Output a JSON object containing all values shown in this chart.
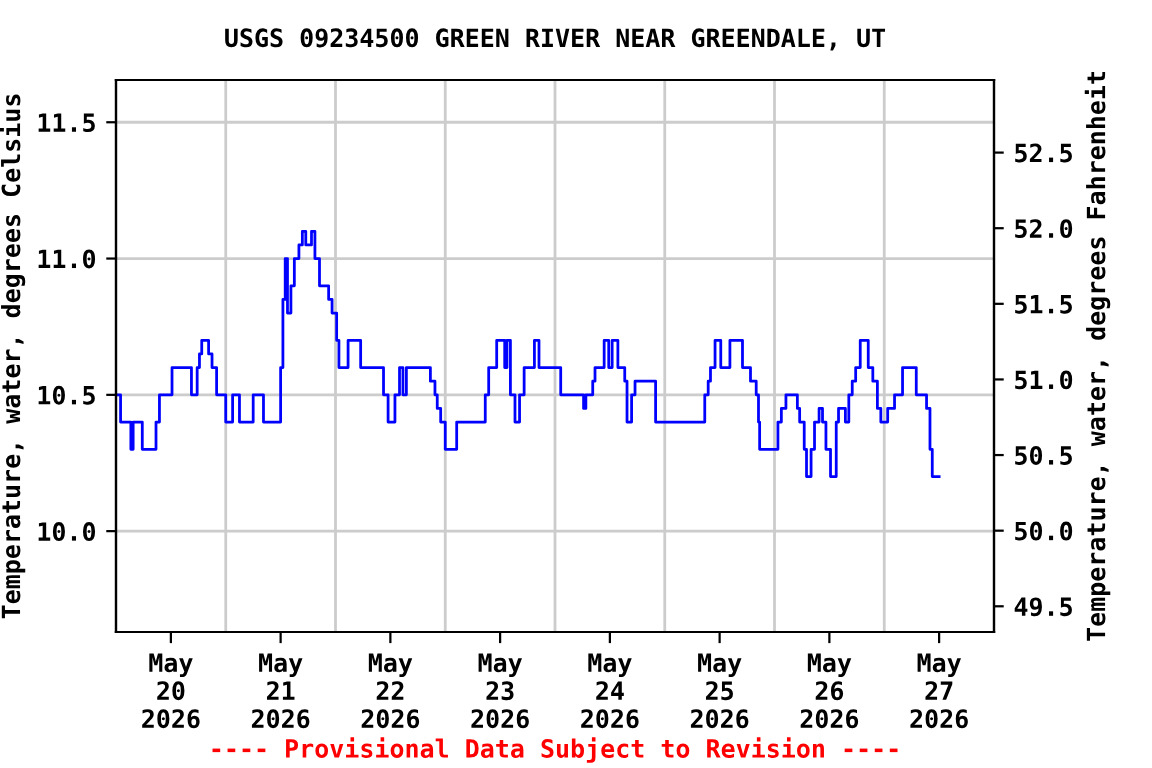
{
  "chart_data": {
    "type": "step",
    "title": "USGS 09234500 GREEN RIVER NEAR GREENDALE, UT",
    "ylabel": "Temperature, water, degrees Celsius",
    "y2label": "Temperature, water, degrees Fahrenheit",
    "annotations": [
      "---- Provisional Data Subject to Revision ----"
    ],
    "x": [
      "2026-05-20T00:00",
      "2026-05-20T01:00",
      "2026-05-20T03:15",
      "2026-05-20T03:45",
      "2026-05-20T05:45",
      "2026-05-20T08:45",
      "2026-05-20T09:30",
      "2026-05-20T12:15",
      "2026-05-20T16:30",
      "2026-05-20T17:45",
      "2026-05-20T18:15",
      "2026-05-20T18:45",
      "2026-05-20T20:15",
      "2026-05-20T21:00",
      "2026-05-20T22:00",
      "2026-05-21T00:00",
      "2026-05-21T01:30",
      "2026-05-21T03:00",
      "2026-05-21T06:00",
      "2026-05-21T08:15",
      "2026-05-21T12:00",
      "2026-05-21T12:30",
      "2026-05-21T13:00",
      "2026-05-21T13:30",
      "2026-05-21T14:15",
      "2026-05-21T15:00",
      "2026-05-21T16:00",
      "2026-05-21T16:45",
      "2026-05-21T17:30",
      "2026-05-21T18:45",
      "2026-05-21T19:30",
      "2026-05-21T20:30",
      "2026-05-21T22:30",
      "2026-05-21T23:15",
      "2026-05-22T00:15",
      "2026-05-22T00:45",
      "2026-05-22T02:45",
      "2026-05-22T05:30",
      "2026-05-22T10:30",
      "2026-05-22T11:30",
      "2026-05-22T13:00",
      "2026-05-22T14:00",
      "2026-05-22T14:45",
      "2026-05-22T15:30",
      "2026-05-22T20:45",
      "2026-05-22T21:45",
      "2026-05-22T22:15",
      "2026-05-22T23:00",
      "2026-05-23T00:00",
      "2026-05-23T02:30",
      "2026-05-23T08:45",
      "2026-05-23T09:30",
      "2026-05-23T11:15",
      "2026-05-23T13:00",
      "2026-05-23T13:30",
      "2026-05-23T14:15",
      "2026-05-23T15:15",
      "2026-05-23T16:15",
      "2026-05-23T17:15",
      "2026-05-23T19:30",
      "2026-05-23T20:30",
      "2026-05-24T01:15",
      "2026-05-24T06:15",
      "2026-05-24T06:45",
      "2026-05-24T08:15",
      "2026-05-24T08:45",
      "2026-05-24T10:45",
      "2026-05-24T11:45",
      "2026-05-24T12:30",
      "2026-05-24T13:45",
      "2026-05-24T15:15",
      "2026-05-24T15:45",
      "2026-05-24T16:45",
      "2026-05-24T17:30",
      "2026-05-24T22:00",
      "2026-05-25T08:45",
      "2026-05-25T09:30",
      "2026-05-25T10:00",
      "2026-05-25T11:00",
      "2026-05-25T12:15",
      "2026-05-25T14:15",
      "2026-05-25T17:00",
      "2026-05-25T18:45",
      "2026-05-25T20:00",
      "2026-05-25T20:30",
      "2026-05-25T20:45",
      "2026-05-26T00:45",
      "2026-05-26T01:30",
      "2026-05-26T02:30",
      "2026-05-26T05:00",
      "2026-05-26T05:30",
      "2026-05-26T06:30",
      "2026-05-26T07:00",
      "2026-05-26T08:00",
      "2026-05-26T08:45",
      "2026-05-26T09:45",
      "2026-05-26T10:30",
      "2026-05-26T11:15",
      "2026-05-26T12:15",
      "2026-05-26T13:30",
      "2026-05-26T14:00",
      "2026-05-26T15:30",
      "2026-05-26T16:15",
      "2026-05-26T17:00",
      "2026-05-26T17:45",
      "2026-05-26T18:45",
      "2026-05-26T20:30",
      "2026-05-26T21:30",
      "2026-05-26T22:30",
      "2026-05-26T23:15",
      "2026-05-27T00:45",
      "2026-05-27T02:15",
      "2026-05-27T04:00",
      "2026-05-27T07:00",
      "2026-05-27T09:15",
      "2026-05-27T10:00",
      "2026-05-27T10:30",
      "2026-05-27T12:00"
    ],
    "series": [
      {
        "color": "#0000ff",
        "values": [
          10.5,
          10.4,
          10.3,
          10.4,
          10.3,
          10.4,
          10.5,
          10.6,
          10.5,
          10.6,
          10.65,
          10.7,
          10.65,
          10.6,
          10.5,
          10.4,
          10.5,
          10.4,
          10.5,
          10.4,
          10.6,
          10.85,
          11.0,
          10.8,
          10.9,
          11.0,
          11.05,
          11.1,
          11.05,
          11.1,
          11.0,
          10.9,
          10.85,
          10.8,
          10.7,
          10.6,
          10.7,
          10.6,
          10.5,
          10.4,
          10.5,
          10.6,
          10.5,
          10.6,
          10.55,
          10.5,
          10.45,
          10.4,
          10.3,
          10.4,
          10.5,
          10.6,
          10.7,
          10.6,
          10.7,
          10.5,
          10.4,
          10.5,
          10.6,
          10.7,
          10.6,
          10.5,
          10.45,
          10.5,
          10.55,
          10.6,
          10.7,
          10.6,
          10.7,
          10.6,
          10.55,
          10.4,
          10.5,
          10.55,
          10.4,
          10.5,
          10.55,
          10.6,
          10.7,
          10.6,
          10.7,
          10.6,
          10.55,
          10.5,
          10.4,
          10.3,
          10.4,
          10.45,
          10.5,
          10.45,
          10.4,
          10.3,
          10.2,
          10.3,
          10.4,
          10.45,
          10.4,
          10.3,
          10.2,
          10.4,
          10.45,
          10.4,
          10.5,
          10.55,
          10.6,
          10.7,
          10.6,
          10.55,
          10.45,
          10.4,
          10.45,
          10.5,
          10.6,
          10.5,
          10.45,
          10.3,
          10.2,
          10.2
        ]
      }
    ],
    "xlim": [
      "2026-05-20T00:00",
      "2026-05-28T00:00"
    ],
    "xticks": [
      {
        "value": "2026-05-20T12:00",
        "label": "May\n20\n2026"
      },
      {
        "value": "2026-05-21T12:00",
        "label": "May\n21\n2026"
      },
      {
        "value": "2026-05-22T12:00",
        "label": "May\n22\n2026"
      },
      {
        "value": "2026-05-23T12:00",
        "label": "May\n23\n2026"
      },
      {
        "value": "2026-05-24T12:00",
        "label": "May\n24\n2026"
      },
      {
        "value": "2026-05-25T12:00",
        "label": "May\n25\n2026"
      },
      {
        "value": "2026-05-26T12:00",
        "label": "May\n26\n2026"
      },
      {
        "value": "2026-05-27T12:00",
        "label": "May\n27\n2026"
      },
      {
        "value": "2026-05-21T00:00",
        "label": null
      },
      {
        "value": "2026-05-22T00:00",
        "label": null
      },
      {
        "value": "2026-05-23T00:00",
        "label": null
      },
      {
        "value": "2026-05-24T00:00",
        "label": null
      },
      {
        "value": "2026-05-25T00:00",
        "label": null
      },
      {
        "value": "2026-05-26T00:00",
        "label": null
      },
      {
        "value": "2026-05-27T00:00",
        "label": null
      }
    ],
    "ylim": [
      9.63,
      11.655
    ],
    "yticks": [
      {
        "value": 10,
        "label": "10.0"
      },
      10.5,
      {
        "value": 11,
        "label": "11.0"
      },
      11.5
    ],
    "y2lim": [
      49.33,
      52.98
    ],
    "y2ticks": [
      49.5,
      {
        "value": 50,
        "label": "50.0"
      },
      50.5,
      {
        "value": 51,
        "label": "51.0"
      },
      51.5,
      {
        "value": 52,
        "label": "52.0"
      },
      52.5
    ],
    "grid": true,
    "legend": false
  }
}
